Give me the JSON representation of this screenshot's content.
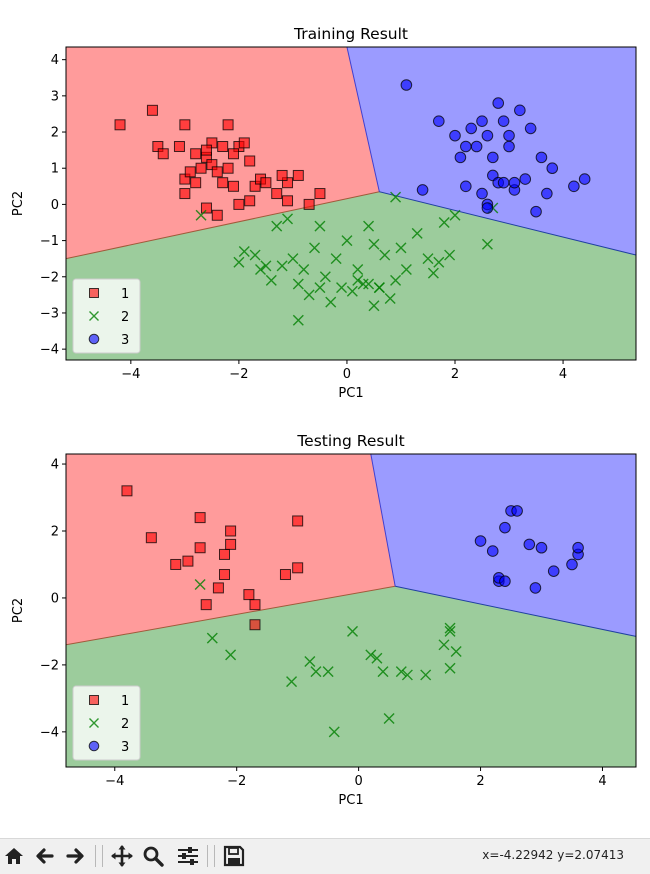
{
  "colors": {
    "class1": "#ff0000",
    "class2": "#008000",
    "class3": "#0000ff",
    "region1": "#ff9b9b",
    "region2": "#9ccc9c",
    "region3": "#9b9bff"
  },
  "chart_data": [
    {
      "type": "scatter",
      "title": "Training Result",
      "xlabel": "PC1",
      "ylabel": "PC2",
      "xlim": [
        -5.2,
        5.35
      ],
      "ylim": [
        -4.3,
        4.35
      ],
      "xticks": [
        -4,
        -2,
        0,
        2,
        4
      ],
      "yticks": [
        -4,
        -3,
        -2,
        -1,
        0,
        1,
        2,
        3,
        4
      ],
      "grid": false,
      "legend_placement": "lower-left",
      "decision_regions": {
        "triple_point": [
          0.6,
          0.35
        ],
        "boundary_1_2_left": [
          -5.2,
          -1.5
        ],
        "boundary_1_3_top": [
          0.0,
          4.35
        ],
        "boundary_2_3_right": [
          5.35,
          -1.4
        ]
      },
      "series": [
        {
          "name": "1",
          "marker": "s",
          "points": [
            [
              -4.2,
              2.2
            ],
            [
              -3.6,
              2.6
            ],
            [
              -3.5,
              1.6
            ],
            [
              -3.4,
              1.4
            ],
            [
              -3.1,
              1.6
            ],
            [
              -3.0,
              2.2
            ],
            [
              -3.0,
              0.7
            ],
            [
              -3.0,
              0.3
            ],
            [
              -2.8,
              0.6
            ],
            [
              -2.6,
              1.3
            ],
            [
              -2.5,
              1.7
            ],
            [
              -2.5,
              1.1
            ],
            [
              -2.4,
              0.9
            ],
            [
              -2.3,
              0.6
            ],
            [
              -2.2,
              1.0
            ],
            [
              -2.0,
              1.6
            ],
            [
              -2.2,
              2.2
            ],
            [
              -2.7,
              1.0
            ],
            [
              -2.6,
              1.5
            ],
            [
              -2.1,
              0.5
            ],
            [
              -1.9,
              1.7
            ],
            [
              -1.8,
              1.2
            ],
            [
              -1.7,
              0.5
            ],
            [
              -1.8,
              0.1
            ],
            [
              -1.6,
              0.7
            ],
            [
              -1.5,
              0.6
            ],
            [
              -1.3,
              0.3
            ],
            [
              -1.1,
              0.6
            ],
            [
              -1.1,
              0.1
            ],
            [
              -0.9,
              0.8
            ],
            [
              -0.7,
              0.0
            ],
            [
              -0.5,
              0.3
            ],
            [
              -2.9,
              0.9
            ],
            [
              -2.1,
              1.4
            ],
            [
              -2.4,
              -0.3
            ],
            [
              -2.6,
              -0.1
            ],
            [
              -2.0,
              0.0
            ],
            [
              -1.2,
              0.8
            ],
            [
              -2.8,
              1.4
            ],
            [
              -2.3,
              1.6
            ]
          ]
        },
        {
          "name": "2",
          "marker": "x",
          "points": [
            [
              -2.7,
              -0.3
            ],
            [
              -2.0,
              -1.6
            ],
            [
              -1.9,
              -1.3
            ],
            [
              -1.7,
              -1.4
            ],
            [
              -1.5,
              -1.7
            ],
            [
              -1.4,
              -2.1
            ],
            [
              -1.3,
              -0.6
            ],
            [
              -1.1,
              -0.4
            ],
            [
              -1.0,
              -1.5
            ],
            [
              -0.9,
              -2.2
            ],
            [
              -0.8,
              -1.8
            ],
            [
              -0.7,
              -2.5
            ],
            [
              -0.6,
              -1.2
            ],
            [
              -0.5,
              -2.3
            ],
            [
              -0.4,
              -2.0
            ],
            [
              -0.3,
              -2.7
            ],
            [
              -0.2,
              -1.5
            ],
            [
              0.0,
              -1.0
            ],
            [
              0.1,
              -2.4
            ],
            [
              0.2,
              -1.8
            ],
            [
              0.3,
              -2.2
            ],
            [
              0.4,
              -2.2
            ],
            [
              0.5,
              -1.1
            ],
            [
              0.6,
              -2.3
            ],
            [
              0.7,
              -1.4
            ],
            [
              0.8,
              -2.6
            ],
            [
              0.9,
              -2.1
            ],
            [
              1.0,
              -1.2
            ],
            [
              1.1,
              -1.8
            ],
            [
              1.3,
              -0.8
            ],
            [
              1.5,
              -1.5
            ],
            [
              1.6,
              -1.9
            ],
            [
              1.7,
              -1.6
            ],
            [
              1.8,
              -0.5
            ],
            [
              1.9,
              -1.4
            ],
            [
              2.0,
              -0.3
            ],
            [
              2.6,
              -1.1
            ],
            [
              2.7,
              -0.1
            ],
            [
              -0.9,
              -3.2
            ],
            [
              0.2,
              -2.1
            ],
            [
              -1.6,
              -1.8
            ],
            [
              -1.2,
              -1.7
            ],
            [
              -0.5,
              -0.6
            ],
            [
              0.9,
              0.2
            ],
            [
              0.4,
              -0.6
            ],
            [
              -0.1,
              -2.3
            ],
            [
              0.5,
              -2.8
            ],
            [
              0.6,
              -2.3
            ]
          ]
        },
        {
          "name": "3",
          "marker": "o",
          "points": [
            [
              1.1,
              3.3
            ],
            [
              1.4,
              0.4
            ],
            [
              1.7,
              2.3
            ],
            [
              2.0,
              1.9
            ],
            [
              2.1,
              1.3
            ],
            [
              2.2,
              0.5
            ],
            [
              2.3,
              2.1
            ],
            [
              2.4,
              1.6
            ],
            [
              2.5,
              2.3
            ],
            [
              2.5,
              0.3
            ],
            [
              2.6,
              0.0
            ],
            [
              2.6,
              1.9
            ],
            [
              2.7,
              1.3
            ],
            [
              2.7,
              0.8
            ],
            [
              2.8,
              2.8
            ],
            [
              2.8,
              0.6
            ],
            [
              2.9,
              2.3
            ],
            [
              2.9,
              0.6
            ],
            [
              3.0,
              1.9
            ],
            [
              3.0,
              1.6
            ],
            [
              3.1,
              0.4
            ],
            [
              3.2,
              2.6
            ],
            [
              3.3,
              0.7
            ],
            [
              3.4,
              2.1
            ],
            [
              3.5,
              -0.2
            ],
            [
              3.6,
              1.3
            ],
            [
              3.7,
              0.3
            ],
            [
              3.8,
              1.0
            ],
            [
              4.2,
              0.5
            ],
            [
              4.4,
              0.7
            ],
            [
              2.6,
              -0.1
            ],
            [
              3.1,
              0.6
            ],
            [
              2.2,
              1.6
            ]
          ]
        }
      ]
    },
    {
      "type": "scatter",
      "title": "Testing Result",
      "xlabel": "PC1",
      "ylabel": "PC2",
      "xlim": [
        -4.8,
        4.55
      ],
      "ylim": [
        -5.05,
        4.3
      ],
      "xticks": [
        -4,
        -2,
        0,
        2,
        4
      ],
      "yticks": [
        -4,
        -2,
        0,
        2,
        4
      ],
      "grid": false,
      "legend_placement": "lower-left",
      "decision_regions": {
        "triple_point": [
          0.6,
          0.35
        ],
        "boundary_1_2_left": [
          -4.8,
          -1.4
        ],
        "boundary_1_3_top": [
          0.2,
          4.3
        ],
        "boundary_2_3_right": [
          4.55,
          -1.15
        ]
      },
      "series": [
        {
          "name": "1",
          "marker": "s",
          "points": [
            [
              -3.8,
              3.2
            ],
            [
              -3.4,
              1.8
            ],
            [
              -3.0,
              1.0
            ],
            [
              -2.8,
              1.1
            ],
            [
              -2.6,
              2.4
            ],
            [
              -2.6,
              1.5
            ],
            [
              -2.5,
              -0.2
            ],
            [
              -2.3,
              0.3
            ],
            [
              -2.2,
              1.3
            ],
            [
              -2.2,
              0.7
            ],
            [
              -2.1,
              2.0
            ],
            [
              -2.1,
              1.6
            ],
            [
              -1.8,
              0.1
            ],
            [
              -1.7,
              -0.2
            ],
            [
              -1.7,
              -0.8
            ],
            [
              -1.2,
              0.7
            ],
            [
              -1.0,
              2.3
            ],
            [
              -1.0,
              0.9
            ]
          ]
        },
        {
          "name": "2",
          "marker": "x",
          "points": [
            [
              -2.6,
              0.4
            ],
            [
              -2.4,
              -1.2
            ],
            [
              -2.1,
              -1.7
            ],
            [
              -1.1,
              -2.5
            ],
            [
              -0.8,
              -1.9
            ],
            [
              -0.7,
              -2.2
            ],
            [
              -0.5,
              -2.2
            ],
            [
              -0.4,
              -4.0
            ],
            [
              -0.1,
              -1.0
            ],
            [
              0.2,
              -1.7
            ],
            [
              0.3,
              -1.8
            ],
            [
              0.4,
              -2.2
            ],
            [
              0.5,
              -3.6
            ],
            [
              0.7,
              -2.2
            ],
            [
              0.8,
              -2.3
            ],
            [
              1.1,
              -2.3
            ],
            [
              1.4,
              -1.4
            ],
            [
              1.5,
              -0.9
            ],
            [
              1.5,
              -1.0
            ],
            [
              1.5,
              -2.1
            ],
            [
              1.6,
              -1.6
            ]
          ]
        },
        {
          "name": "3",
          "marker": "o",
          "points": [
            [
              2.0,
              1.7
            ],
            [
              2.2,
              1.4
            ],
            [
              2.3,
              0.5
            ],
            [
              2.3,
              0.6
            ],
            [
              2.4,
              2.1
            ],
            [
              2.4,
              0.5
            ],
            [
              2.5,
              2.6
            ],
            [
              2.6,
              2.6
            ],
            [
              2.8,
              1.6
            ],
            [
              2.9,
              0.3
            ],
            [
              3.0,
              1.5
            ],
            [
              3.2,
              0.8
            ],
            [
              3.5,
              1.0
            ],
            [
              3.6,
              1.3
            ],
            [
              3.6,
              1.5
            ]
          ]
        }
      ]
    }
  ],
  "toolbar": {
    "buttons": [
      "home-icon",
      "back-icon",
      "forward-icon",
      "pan-icon",
      "zoom-icon",
      "configure-subplots-icon",
      "save-icon"
    ],
    "coords_text": "x=-4.22942 y=2.07413"
  }
}
